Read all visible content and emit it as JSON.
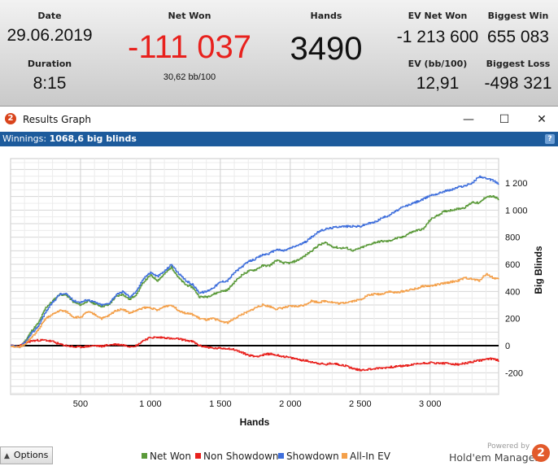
{
  "stats": {
    "date": {
      "label": "Date",
      "value": "29.06.2019"
    },
    "duration": {
      "label": "Duration",
      "value": "8:15"
    },
    "net_won": {
      "label": "Net Won",
      "value": "-111 037",
      "sub": "30,62 bb/100",
      "color": "#e8211d"
    },
    "hands": {
      "label": "Hands",
      "value": "3490"
    },
    "ev_net_won": {
      "label": "EV Net Won",
      "value": "-1 213 600"
    },
    "ev_bb100": {
      "label": "EV (bb/100)",
      "value": "12,91"
    },
    "biggest_win": {
      "label": "Biggest Win",
      "value": "655 083"
    },
    "biggest_loss": {
      "label": "Biggest Loss",
      "value": "-498 321"
    }
  },
  "window": {
    "app_icon": "holdem-manager-icon",
    "app_icon_text": "2",
    "title": "Results Graph",
    "minimize": "—",
    "maximize": "☐",
    "close": "✕"
  },
  "winnings_bar": {
    "label": "Winnings:",
    "value": "1068,6 big blinds",
    "help": "?"
  },
  "chart_data": {
    "type": "line",
    "xlabel": "Hands",
    "ylabel": "Big Blinds",
    "xlim": [
      0,
      3490
    ],
    "ylim": [
      -360,
      1380
    ],
    "x_ticks": [
      500,
      1000,
      1500,
      2000,
      2500,
      3000
    ],
    "x_tick_labels": [
      "500",
      "1 000",
      "1 500",
      "2 000",
      "2 500",
      "3 000"
    ],
    "y_ticks": [
      -200,
      0,
      200,
      400,
      600,
      800,
      1000,
      1200
    ],
    "y_tick_labels": [
      "-200",
      "0",
      "200",
      "400",
      "600",
      "800",
      "1 000",
      "1 200"
    ],
    "grid": true,
    "legend_position": "bottom",
    "series": [
      {
        "name": "Net Won",
        "color": "#5b9a3a",
        "points": [
          [
            0,
            0
          ],
          [
            60,
            -10
          ],
          [
            100,
            30
          ],
          [
            150,
            110
          ],
          [
            200,
            170
          ],
          [
            250,
            280
          ],
          [
            300,
            330
          ],
          [
            350,
            380
          ],
          [
            400,
            370
          ],
          [
            450,
            320
          ],
          [
            500,
            300
          ],
          [
            550,
            330
          ],
          [
            600,
            310
          ],
          [
            650,
            290
          ],
          [
            700,
            300
          ],
          [
            750,
            360
          ],
          [
            800,
            380
          ],
          [
            850,
            340
          ],
          [
            900,
            380
          ],
          [
            950,
            470
          ],
          [
            1000,
            520
          ],
          [
            1050,
            480
          ],
          [
            1100,
            530
          ],
          [
            1150,
            580
          ],
          [
            1200,
            500
          ],
          [
            1250,
            450
          ],
          [
            1300,
            430
          ],
          [
            1350,
            360
          ],
          [
            1400,
            360
          ],
          [
            1450,
            380
          ],
          [
            1500,
            400
          ],
          [
            1550,
            410
          ],
          [
            1600,
            470
          ],
          [
            1650,
            520
          ],
          [
            1700,
            550
          ],
          [
            1750,
            560
          ],
          [
            1800,
            590
          ],
          [
            1850,
            590
          ],
          [
            1900,
            630
          ],
          [
            1950,
            610
          ],
          [
            2000,
            610
          ],
          [
            2050,
            630
          ],
          [
            2100,
            660
          ],
          [
            2150,
            700
          ],
          [
            2200,
            740
          ],
          [
            2250,
            760
          ],
          [
            2300,
            730
          ],
          [
            2350,
            720
          ],
          [
            2400,
            720
          ],
          [
            2450,
            700
          ],
          [
            2500,
            720
          ],
          [
            2550,
            740
          ],
          [
            2600,
            760
          ],
          [
            2650,
            770
          ],
          [
            2700,
            770
          ],
          [
            2750,
            790
          ],
          [
            2800,
            800
          ],
          [
            2850,
            830
          ],
          [
            2900,
            850
          ],
          [
            2950,
            860
          ],
          [
            3000,
            930
          ],
          [
            3050,
            960
          ],
          [
            3100,
            990
          ],
          [
            3150,
            1000
          ],
          [
            3200,
            1010
          ],
          [
            3250,
            1020
          ],
          [
            3300,
            1060
          ],
          [
            3350,
            1050
          ],
          [
            3400,
            1100
          ],
          [
            3450,
            1100
          ],
          [
            3490,
            1080
          ]
        ]
      },
      {
        "name": "Non Showdown",
        "color": "#e8211d",
        "points": [
          [
            0,
            0
          ],
          [
            60,
            -5
          ],
          [
            100,
            20
          ],
          [
            150,
            35
          ],
          [
            200,
            40
          ],
          [
            250,
            40
          ],
          [
            300,
            30
          ],
          [
            350,
            10
          ],
          [
            400,
            0
          ],
          [
            450,
            -10
          ],
          [
            500,
            -10
          ],
          [
            550,
            -5
          ],
          [
            600,
            0
          ],
          [
            650,
            -5
          ],
          [
            700,
            5
          ],
          [
            750,
            10
          ],
          [
            800,
            5
          ],
          [
            850,
            -5
          ],
          [
            900,
            0
          ],
          [
            950,
            40
          ],
          [
            1000,
            60
          ],
          [
            1050,
            60
          ],
          [
            1100,
            60
          ],
          [
            1150,
            50
          ],
          [
            1200,
            50
          ],
          [
            1250,
            40
          ],
          [
            1300,
            30
          ],
          [
            1350,
            0
          ],
          [
            1400,
            -10
          ],
          [
            1450,
            -20
          ],
          [
            1500,
            -20
          ],
          [
            1550,
            -20
          ],
          [
            1600,
            -30
          ],
          [
            1650,
            -50
          ],
          [
            1700,
            -70
          ],
          [
            1750,
            -80
          ],
          [
            1800,
            -70
          ],
          [
            1850,
            -60
          ],
          [
            1900,
            -70
          ],
          [
            1950,
            -80
          ],
          [
            2000,
            -90
          ],
          [
            2050,
            -100
          ],
          [
            2100,
            -110
          ],
          [
            2150,
            -120
          ],
          [
            2200,
            -130
          ],
          [
            2250,
            -140
          ],
          [
            2300,
            -130
          ],
          [
            2350,
            -140
          ],
          [
            2400,
            -150
          ],
          [
            2450,
            -170
          ],
          [
            2500,
            -180
          ],
          [
            2550,
            -175
          ],
          [
            2600,
            -170
          ],
          [
            2650,
            -165
          ],
          [
            2700,
            -160
          ],
          [
            2750,
            -155
          ],
          [
            2800,
            -150
          ],
          [
            2850,
            -145
          ],
          [
            2900,
            -135
          ],
          [
            2950,
            -130
          ],
          [
            3000,
            -125
          ],
          [
            3050,
            -130
          ],
          [
            3100,
            -130
          ],
          [
            3150,
            -135
          ],
          [
            3200,
            -140
          ],
          [
            3250,
            -130
          ],
          [
            3300,
            -120
          ],
          [
            3350,
            -110
          ],
          [
            3400,
            -100
          ],
          [
            3450,
            -95
          ],
          [
            3490,
            -110
          ]
        ]
      },
      {
        "name": "Showdown",
        "color": "#3f6fdc",
        "points": [
          [
            0,
            0
          ],
          [
            60,
            -15
          ],
          [
            100,
            20
          ],
          [
            150,
            90
          ],
          [
            200,
            150
          ],
          [
            250,
            250
          ],
          [
            300,
            320
          ],
          [
            350,
            380
          ],
          [
            400,
            380
          ],
          [
            450,
            330
          ],
          [
            500,
            320
          ],
          [
            550,
            340
          ],
          [
            600,
            320
          ],
          [
            650,
            300
          ],
          [
            700,
            310
          ],
          [
            750,
            370
          ],
          [
            800,
            400
          ],
          [
            850,
            360
          ],
          [
            900,
            400
          ],
          [
            950,
            500
          ],
          [
            1000,
            540
          ],
          [
            1050,
            510
          ],
          [
            1100,
            550
          ],
          [
            1150,
            600
          ],
          [
            1200,
            530
          ],
          [
            1250,
            480
          ],
          [
            1300,
            450
          ],
          [
            1350,
            390
          ],
          [
            1400,
            400
          ],
          [
            1450,
            430
          ],
          [
            1500,
            470
          ],
          [
            1550,
            480
          ],
          [
            1600,
            540
          ],
          [
            1650,
            580
          ],
          [
            1700,
            620
          ],
          [
            1750,
            640
          ],
          [
            1800,
            670
          ],
          [
            1850,
            680
          ],
          [
            1900,
            710
          ],
          [
            1950,
            700
          ],
          [
            2000,
            720
          ],
          [
            2050,
            740
          ],
          [
            2100,
            760
          ],
          [
            2150,
            800
          ],
          [
            2200,
            840
          ],
          [
            2250,
            860
          ],
          [
            2300,
            870
          ],
          [
            2350,
            880
          ],
          [
            2400,
            880
          ],
          [
            2450,
            880
          ],
          [
            2500,
            880
          ],
          [
            2550,
            900
          ],
          [
            2600,
            910
          ],
          [
            2650,
            940
          ],
          [
            2700,
            960
          ],
          [
            2750,
            990
          ],
          [
            2800,
            1020
          ],
          [
            2850,
            1040
          ],
          [
            2900,
            1060
          ],
          [
            2950,
            1080
          ],
          [
            3000,
            1110
          ],
          [
            3050,
            1120
          ],
          [
            3100,
            1140
          ],
          [
            3150,
            1150
          ],
          [
            3200,
            1170
          ],
          [
            3250,
            1180
          ],
          [
            3300,
            1200
          ],
          [
            3350,
            1250
          ],
          [
            3400,
            1230
          ],
          [
            3450,
            1220
          ],
          [
            3490,
            1190
          ]
        ]
      },
      {
        "name": "All-In EV",
        "color": "#f4a04a",
        "points": [
          [
            0,
            0
          ],
          [
            60,
            -15
          ],
          [
            100,
            10
          ],
          [
            150,
            60
          ],
          [
            200,
            120
          ],
          [
            250,
            200
          ],
          [
            300,
            230
          ],
          [
            350,
            260
          ],
          [
            400,
            250
          ],
          [
            450,
            210
          ],
          [
            500,
            210
          ],
          [
            550,
            250
          ],
          [
            600,
            230
          ],
          [
            650,
            200
          ],
          [
            700,
            220
          ],
          [
            750,
            260
          ],
          [
            800,
            270
          ],
          [
            850,
            240
          ],
          [
            900,
            260
          ],
          [
            950,
            280
          ],
          [
            1000,
            280
          ],
          [
            1050,
            260
          ],
          [
            1100,
            290
          ],
          [
            1150,
            300
          ],
          [
            1200,
            260
          ],
          [
            1250,
            240
          ],
          [
            1300,
            230
          ],
          [
            1350,
            200
          ],
          [
            1400,
            190
          ],
          [
            1450,
            200
          ],
          [
            1500,
            180
          ],
          [
            1550,
            170
          ],
          [
            1600,
            200
          ],
          [
            1650,
            230
          ],
          [
            1700,
            250
          ],
          [
            1750,
            280
          ],
          [
            1800,
            300
          ],
          [
            1850,
            290
          ],
          [
            1900,
            270
          ],
          [
            1950,
            280
          ],
          [
            2000,
            290
          ],
          [
            2050,
            290
          ],
          [
            2100,
            300
          ],
          [
            2150,
            330
          ],
          [
            2200,
            320
          ],
          [
            2250,
            330
          ],
          [
            2300,
            320
          ],
          [
            2350,
            310
          ],
          [
            2400,
            320
          ],
          [
            2450,
            330
          ],
          [
            2500,
            340
          ],
          [
            2550,
            370
          ],
          [
            2600,
            380
          ],
          [
            2650,
            380
          ],
          [
            2700,
            400
          ],
          [
            2750,
            390
          ],
          [
            2800,
            400
          ],
          [
            2850,
            410
          ],
          [
            2900,
            420
          ],
          [
            2950,
            440
          ],
          [
            3000,
            440
          ],
          [
            3050,
            450
          ],
          [
            3100,
            460
          ],
          [
            3150,
            470
          ],
          [
            3200,
            480
          ],
          [
            3250,
            500
          ],
          [
            3300,
            490
          ],
          [
            3350,
            480
          ],
          [
            3400,
            530
          ],
          [
            3450,
            500
          ],
          [
            3490,
            490
          ]
        ]
      }
    ]
  },
  "bottom": {
    "options_label": "Options",
    "options_icon": "triangle-up-icon",
    "legend": [
      "Net Won",
      "Non Showdown",
      "Showdown",
      "All-In EV"
    ],
    "legend_colors": [
      "#5b9a3a",
      "#e8211d",
      "#3f6fdc",
      "#f4a04a"
    ],
    "powered_by": "Powered by",
    "brand": "Hold'em Manager",
    "brand_logo_text": "2"
  }
}
